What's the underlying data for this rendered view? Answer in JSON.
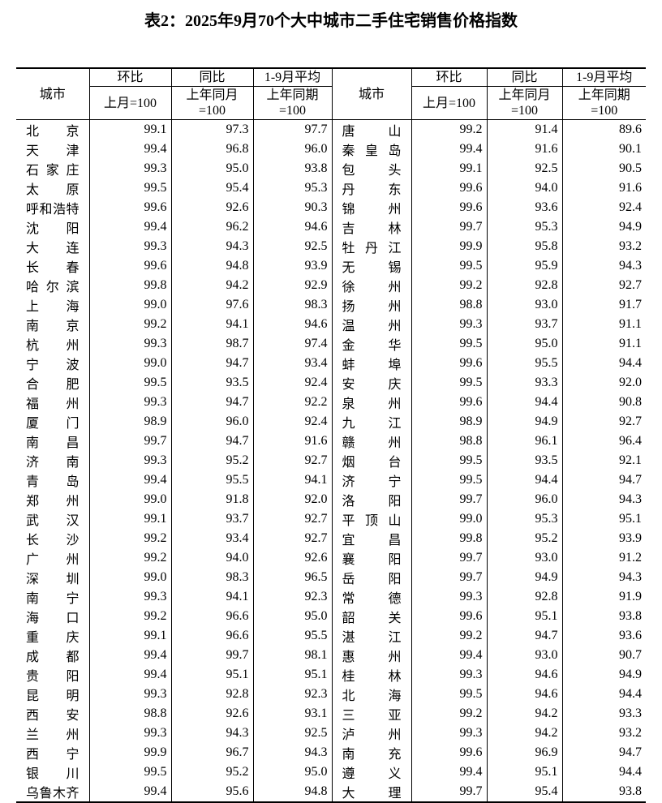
{
  "title": "表2：2025年9月70个大中城市二手住宅销售价格指数",
  "header": {
    "city_label": "城市",
    "groups": [
      {
        "top": "环比",
        "bottom": "上月=100"
      },
      {
        "top": "同比",
        "bottom": "上年同月",
        "bottom2": "=100"
      },
      {
        "top": "1-9月平均",
        "bottom": "上年同期",
        "bottom2": "=100"
      }
    ]
  },
  "left_rows": [
    {
      "city": "北京",
      "mom": "99.1",
      "yoy": "97.3",
      "avg": "97.7"
    },
    {
      "city": "天津",
      "mom": "99.4",
      "yoy": "96.8",
      "avg": "96.0"
    },
    {
      "city": "石家庄",
      "mom": "99.3",
      "yoy": "95.0",
      "avg": "93.8"
    },
    {
      "city": "太原",
      "mom": "99.5",
      "yoy": "95.4",
      "avg": "95.3"
    },
    {
      "city": "呼和浩特",
      "mom": "99.6",
      "yoy": "92.6",
      "avg": "90.3"
    },
    {
      "city": "沈阳",
      "mom": "99.4",
      "yoy": "96.2",
      "avg": "94.6"
    },
    {
      "city": "大连",
      "mom": "99.3",
      "yoy": "94.3",
      "avg": "92.5"
    },
    {
      "city": "长春",
      "mom": "99.6",
      "yoy": "94.8",
      "avg": "93.9"
    },
    {
      "city": "哈尔滨",
      "mom": "99.8",
      "yoy": "94.2",
      "avg": "92.9"
    },
    {
      "city": "上海",
      "mom": "99.0",
      "yoy": "97.6",
      "avg": "98.3"
    },
    {
      "city": "南京",
      "mom": "99.2",
      "yoy": "94.1",
      "avg": "94.6"
    },
    {
      "city": "杭州",
      "mom": "99.3",
      "yoy": "98.7",
      "avg": "97.4"
    },
    {
      "city": "宁波",
      "mom": "99.0",
      "yoy": "94.7",
      "avg": "93.4"
    },
    {
      "city": "合肥",
      "mom": "99.5",
      "yoy": "93.5",
      "avg": "92.4"
    },
    {
      "city": "福州",
      "mom": "99.3",
      "yoy": "94.7",
      "avg": "92.2"
    },
    {
      "city": "厦门",
      "mom": "98.9",
      "yoy": "96.0",
      "avg": "92.4"
    },
    {
      "city": "南昌",
      "mom": "99.7",
      "yoy": "94.7",
      "avg": "91.6"
    },
    {
      "city": "济南",
      "mom": "99.3",
      "yoy": "95.2",
      "avg": "92.7"
    },
    {
      "city": "青岛",
      "mom": "99.4",
      "yoy": "95.5",
      "avg": "94.1"
    },
    {
      "city": "郑州",
      "mom": "99.0",
      "yoy": "91.8",
      "avg": "92.0"
    },
    {
      "city": "武汉",
      "mom": "99.1",
      "yoy": "93.7",
      "avg": "92.7"
    },
    {
      "city": "长沙",
      "mom": "99.2",
      "yoy": "93.4",
      "avg": "92.7"
    },
    {
      "city": "广州",
      "mom": "99.2",
      "yoy": "94.0",
      "avg": "92.6"
    },
    {
      "city": "深圳",
      "mom": "99.0",
      "yoy": "98.3",
      "avg": "96.5"
    },
    {
      "city": "南宁",
      "mom": "99.3",
      "yoy": "94.1",
      "avg": "92.3"
    },
    {
      "city": "海口",
      "mom": "99.2",
      "yoy": "96.6",
      "avg": "95.0"
    },
    {
      "city": "重庆",
      "mom": "99.1",
      "yoy": "96.6",
      "avg": "95.5"
    },
    {
      "city": "成都",
      "mom": "99.4",
      "yoy": "99.7",
      "avg": "98.1"
    },
    {
      "city": "贵阳",
      "mom": "99.4",
      "yoy": "95.1",
      "avg": "95.1"
    },
    {
      "city": "昆明",
      "mom": "99.3",
      "yoy": "92.8",
      "avg": "92.3"
    },
    {
      "city": "西安",
      "mom": "98.8",
      "yoy": "92.6",
      "avg": "93.1"
    },
    {
      "city": "兰州",
      "mom": "99.3",
      "yoy": "94.3",
      "avg": "92.5"
    },
    {
      "city": "西宁",
      "mom": "99.9",
      "yoy": "96.7",
      "avg": "94.3"
    },
    {
      "city": "银川",
      "mom": "99.5",
      "yoy": "95.2",
      "avg": "95.0"
    },
    {
      "city": "乌鲁木齐",
      "mom": "99.4",
      "yoy": "95.6",
      "avg": "94.8"
    }
  ],
  "right_rows": [
    {
      "city": "唐山",
      "mom": "99.2",
      "yoy": "91.4",
      "avg": "89.6"
    },
    {
      "city": "秦皇岛",
      "mom": "99.4",
      "yoy": "91.6",
      "avg": "90.1"
    },
    {
      "city": "包头",
      "mom": "99.1",
      "yoy": "92.5",
      "avg": "90.5"
    },
    {
      "city": "丹东",
      "mom": "99.6",
      "yoy": "94.0",
      "avg": "91.6"
    },
    {
      "city": "锦州",
      "mom": "99.6",
      "yoy": "93.6",
      "avg": "92.4"
    },
    {
      "city": "吉林",
      "mom": "99.7",
      "yoy": "95.3",
      "avg": "94.9"
    },
    {
      "city": "牡丹江",
      "mom": "99.9",
      "yoy": "95.8",
      "avg": "93.2"
    },
    {
      "city": "无锡",
      "mom": "99.5",
      "yoy": "95.9",
      "avg": "94.3"
    },
    {
      "city": "徐州",
      "mom": "99.2",
      "yoy": "92.8",
      "avg": "92.7"
    },
    {
      "city": "扬州",
      "mom": "98.8",
      "yoy": "93.0",
      "avg": "91.7"
    },
    {
      "city": "温州",
      "mom": "99.3",
      "yoy": "93.7",
      "avg": "91.1"
    },
    {
      "city": "金华",
      "mom": "99.5",
      "yoy": "95.0",
      "avg": "91.1"
    },
    {
      "city": "蚌埠",
      "mom": "99.6",
      "yoy": "95.5",
      "avg": "94.4"
    },
    {
      "city": "安庆",
      "mom": "99.5",
      "yoy": "93.3",
      "avg": "92.0"
    },
    {
      "city": "泉州",
      "mom": "99.6",
      "yoy": "94.4",
      "avg": "90.8"
    },
    {
      "city": "九江",
      "mom": "98.9",
      "yoy": "94.9",
      "avg": "92.7"
    },
    {
      "city": "赣州",
      "mom": "98.8",
      "yoy": "96.1",
      "avg": "96.4"
    },
    {
      "city": "烟台",
      "mom": "99.5",
      "yoy": "93.5",
      "avg": "92.1"
    },
    {
      "city": "济宁",
      "mom": "99.5",
      "yoy": "94.4",
      "avg": "94.7"
    },
    {
      "city": "洛阳",
      "mom": "99.7",
      "yoy": "96.0",
      "avg": "94.3"
    },
    {
      "city": "平顶山",
      "mom": "99.0",
      "yoy": "95.3",
      "avg": "95.1"
    },
    {
      "city": "宜昌",
      "mom": "99.8",
      "yoy": "95.2",
      "avg": "93.9"
    },
    {
      "city": "襄阳",
      "mom": "99.7",
      "yoy": "93.0",
      "avg": "91.2"
    },
    {
      "city": "岳阳",
      "mom": "99.7",
      "yoy": "94.9",
      "avg": "94.3"
    },
    {
      "city": "常德",
      "mom": "99.3",
      "yoy": "92.8",
      "avg": "91.9"
    },
    {
      "city": "韶关",
      "mom": "99.6",
      "yoy": "95.1",
      "avg": "93.8"
    },
    {
      "city": "湛江",
      "mom": "99.2",
      "yoy": "94.7",
      "avg": "93.6"
    },
    {
      "city": "惠州",
      "mom": "99.4",
      "yoy": "93.0",
      "avg": "90.7"
    },
    {
      "city": "桂林",
      "mom": "99.3",
      "yoy": "94.6",
      "avg": "94.9"
    },
    {
      "city": "北海",
      "mom": "99.5",
      "yoy": "94.6",
      "avg": "94.4"
    },
    {
      "city": "三亚",
      "mom": "99.2",
      "yoy": "94.2",
      "avg": "93.3"
    },
    {
      "city": "泸州",
      "mom": "99.3",
      "yoy": "94.2",
      "avg": "93.2"
    },
    {
      "city": "南充",
      "mom": "99.6",
      "yoy": "96.9",
      "avg": "94.7"
    },
    {
      "city": "遵义",
      "mom": "99.4",
      "yoy": "95.1",
      "avg": "94.4"
    },
    {
      "city": "大理",
      "mom": "99.7",
      "yoy": "95.4",
      "avg": "93.8"
    }
  ]
}
